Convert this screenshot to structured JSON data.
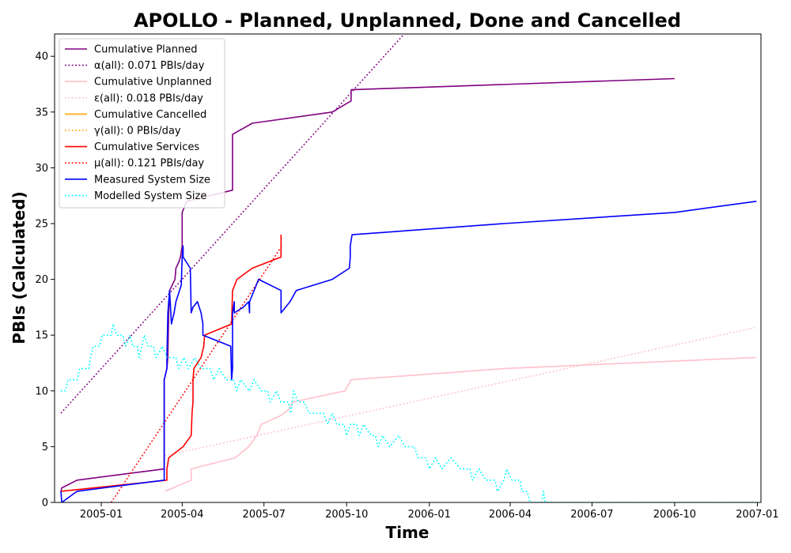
{
  "chart_data": {
    "type": "line",
    "title": "APOLLO - Planned, Unplanned, Done  and Cancelled",
    "xlabel": "Time",
    "ylabel": "PBIs (Calculated)",
    "xlim": [
      "2004-11-10",
      "2007-01-05"
    ],
    "ylim": [
      0,
      42
    ],
    "x_ticks": [
      {
        "date": "2005-01-01",
        "label": "2005-01"
      },
      {
        "date": "2005-04-01",
        "label": "2005-04"
      },
      {
        "date": "2005-07-01",
        "label": "2005-07"
      },
      {
        "date": "2005-10-01",
        "label": "2005-10"
      },
      {
        "date": "2006-01-01",
        "label": "2006-01"
      },
      {
        "date": "2006-04-01",
        "label": "2006-04"
      },
      {
        "date": "2006-07-01",
        "label": "2006-07"
      },
      {
        "date": "2006-10-01",
        "label": "2006-10"
      },
      {
        "date": "2007-01-01",
        "label": "2007-01"
      }
    ],
    "y_ticks": [
      0,
      5,
      10,
      15,
      20,
      25,
      30,
      35,
      40
    ],
    "grid": false,
    "legend_position": "top-left",
    "series": [
      {
        "name": "Cumulative Planned",
        "color": "#800080",
        "style": "solid",
        "points": [
          [
            "2004-11-17",
            1
          ],
          [
            "2004-11-18",
            1.3
          ],
          [
            "2004-12-05",
            2
          ],
          [
            "2005-03-12",
            3
          ],
          [
            "2005-03-12",
            11
          ],
          [
            "2005-03-15",
            12
          ],
          [
            "2005-03-16",
            13
          ],
          [
            "2005-03-17",
            17
          ],
          [
            "2005-03-18",
            19
          ],
          [
            "2005-03-24",
            20
          ],
          [
            "2005-03-25",
            21
          ],
          [
            "2005-03-28",
            21.5
          ],
          [
            "2005-03-30",
            22
          ],
          [
            "2005-03-31",
            22.5
          ],
          [
            "2005-04-01",
            23
          ],
          [
            "2005-04-01",
            26
          ],
          [
            "2005-04-06",
            27
          ],
          [
            "2005-05-27",
            28
          ],
          [
            "2005-05-27",
            33
          ],
          [
            "2005-06-18",
            34
          ],
          [
            "2005-09-15",
            35
          ],
          [
            "2005-10-06",
            36
          ],
          [
            "2005-10-06",
            37
          ],
          [
            "2006-10-01",
            38
          ]
        ]
      },
      {
        "name": "α(all): 0.071 PBIs/day",
        "color": "#800080",
        "style": "dotted",
        "points": [
          [
            "2004-11-17",
            8
          ],
          [
            "2005-12-04",
            42
          ]
        ]
      },
      {
        "name": "Cumulative Unplanned",
        "color": "#ffc0cb",
        "style": "solid",
        "points": [
          [
            "2005-03-13",
            1
          ],
          [
            "2005-04-11",
            2
          ],
          [
            "2005-04-11",
            3
          ],
          [
            "2005-05-30",
            4
          ],
          [
            "2005-06-14",
            5
          ],
          [
            "2005-06-23",
            6
          ],
          [
            "2005-06-28",
            7
          ],
          [
            "2005-07-20",
            7.8
          ],
          [
            "2005-07-28",
            8.3
          ],
          [
            "2005-08-02",
            9
          ],
          [
            "2005-09-29",
            10
          ],
          [
            "2005-10-06",
            11
          ],
          [
            "2006-03-25",
            12
          ],
          [
            "2006-12-31",
            13
          ]
        ]
      },
      {
        "name": "ε(all): 0.018 PBIs/day",
        "color": "#ffc0cb",
        "style": "dotted",
        "points": [
          [
            "2005-03-13",
            4.2
          ],
          [
            "2006-12-31",
            15.7
          ]
        ]
      },
      {
        "name": "Cumulative Cancelled",
        "color": "#ffa500",
        "style": "solid",
        "points": []
      },
      {
        "name": "γ(all): 0 PBIs/day",
        "color": "#ffa500",
        "style": "dotted",
        "points": []
      },
      {
        "name": "Cumulative Services",
        "color": "#ff0000",
        "style": "solid",
        "points": [
          [
            "2004-11-17",
            1
          ],
          [
            "2005-03-15",
            2
          ],
          [
            "2005-03-15",
            3
          ],
          [
            "2005-03-16",
            3.5
          ],
          [
            "2005-03-17",
            4
          ],
          [
            "2005-04-02",
            5
          ],
          [
            "2005-04-11",
            6
          ],
          [
            "2005-04-12",
            8
          ],
          [
            "2005-04-13",
            9
          ],
          [
            "2005-04-13",
            11
          ],
          [
            "2005-04-14",
            12
          ],
          [
            "2005-04-22",
            13
          ],
          [
            "2005-04-25",
            14
          ],
          [
            "2005-04-26",
            15
          ],
          [
            "2005-05-26",
            16
          ],
          [
            "2005-05-27",
            19
          ],
          [
            "2005-06-01",
            20
          ],
          [
            "2005-06-18",
            21
          ],
          [
            "2005-07-20",
            22
          ],
          [
            "2005-07-20",
            24
          ]
        ]
      },
      {
        "name": "μ(all): 0.121 PBIs/day",
        "color": "#ff0000",
        "style": "dotted",
        "points": [
          [
            "2005-01-12",
            0
          ],
          [
            "2005-07-21",
            23
          ]
        ]
      },
      {
        "name": "Measured System Size",
        "color": "#0000ff",
        "style": "solid",
        "points": [
          [
            "2004-11-17",
            1
          ],
          [
            "2004-11-18",
            0
          ],
          [
            "2004-12-05",
            1
          ],
          [
            "2005-03-12",
            2
          ],
          [
            "2005-03-12",
            11
          ],
          [
            "2005-03-15",
            12
          ],
          [
            "2005-03-15",
            13
          ],
          [
            "2005-03-16",
            17
          ],
          [
            "2005-03-17",
            18
          ],
          [
            "2005-03-18",
            19
          ],
          [
            "2005-03-20",
            16
          ],
          [
            "2005-03-23",
            17
          ],
          [
            "2005-03-25",
            18
          ],
          [
            "2005-03-31",
            19.5
          ],
          [
            "2005-04-01",
            22
          ],
          [
            "2005-04-02",
            23
          ],
          [
            "2005-04-02",
            22
          ],
          [
            "2005-04-10",
            21
          ],
          [
            "2005-04-11",
            17
          ],
          [
            "2005-04-13",
            17.5
          ],
          [
            "2005-04-18",
            18
          ],
          [
            "2005-04-22",
            17
          ],
          [
            "2005-04-24",
            16
          ],
          [
            "2005-04-24",
            15
          ],
          [
            "2005-05-25",
            14
          ],
          [
            "2005-05-26",
            11
          ],
          [
            "2005-05-27",
            12
          ],
          [
            "2005-05-27",
            17
          ],
          [
            "2005-05-29",
            18
          ],
          [
            "2005-05-29",
            17
          ],
          [
            "2005-06-08",
            17.5
          ],
          [
            "2005-06-14",
            18
          ],
          [
            "2005-06-15",
            17
          ],
          [
            "2005-06-15",
            18
          ],
          [
            "2005-06-25",
            20
          ],
          [
            "2005-07-20",
            19
          ],
          [
            "2005-07-20",
            17
          ],
          [
            "2005-07-30",
            18
          ],
          [
            "2005-08-06",
            19
          ],
          [
            "2005-09-15",
            20
          ],
          [
            "2005-10-04",
            21
          ],
          [
            "2005-10-05",
            22
          ],
          [
            "2005-10-05",
            23
          ],
          [
            "2005-10-07",
            24
          ],
          [
            "2006-03-25",
            25
          ],
          [
            "2006-10-01",
            26
          ],
          [
            "2006-12-31",
            27
          ]
        ]
      },
      {
        "name": "Modelled System Size",
        "color": "#00ffff",
        "style": "dotted",
        "points": [
          [
            "2004-11-17",
            10
          ],
          [
            "2004-11-22",
            10
          ],
          [
            "2004-11-25",
            11
          ],
          [
            "2004-12-05",
            11
          ],
          [
            "2004-12-08",
            12
          ],
          [
            "2004-12-18",
            12
          ],
          [
            "2004-12-20",
            13
          ],
          [
            "2004-12-23",
            14
          ],
          [
            "2004-12-30",
            14
          ],
          [
            "2005-01-02",
            15
          ],
          [
            "2005-01-12",
            15
          ],
          [
            "2005-01-14",
            16
          ],
          [
            "2005-01-18",
            15
          ],
          [
            "2005-01-25",
            15
          ],
          [
            "2005-01-28",
            14
          ],
          [
            "2005-02-02",
            15
          ],
          [
            "2005-02-05",
            14
          ],
          [
            "2005-02-10",
            14
          ],
          [
            "2005-02-12",
            13
          ],
          [
            "2005-02-15",
            14
          ],
          [
            "2005-02-18",
            15
          ],
          [
            "2005-02-22",
            14
          ],
          [
            "2005-02-28",
            14
          ],
          [
            "2005-03-03",
            13
          ],
          [
            "2005-03-10",
            14
          ],
          [
            "2005-03-15",
            13
          ],
          [
            "2005-03-25",
            13
          ],
          [
            "2005-03-28",
            12
          ],
          [
            "2005-04-03",
            13
          ],
          [
            "2005-04-08",
            12
          ],
          [
            "2005-04-15",
            13
          ],
          [
            "2005-04-22",
            12
          ],
          [
            "2005-05-02",
            12
          ],
          [
            "2005-05-06",
            11
          ],
          [
            "2005-05-12",
            12
          ],
          [
            "2005-05-20",
            11
          ],
          [
            "2005-05-28",
            11
          ],
          [
            "2005-06-01",
            10
          ],
          [
            "2005-06-05",
            11
          ],
          [
            "2005-06-15",
            10
          ],
          [
            "2005-06-20",
            11
          ],
          [
            "2005-06-28",
            10
          ],
          [
            "2005-07-05",
            10
          ],
          [
            "2005-07-08",
            9
          ],
          [
            "2005-07-15",
            10
          ],
          [
            "2005-07-20",
            9
          ],
          [
            "2005-07-28",
            9
          ],
          [
            "2005-07-31",
            8
          ],
          [
            "2005-08-03",
            10
          ],
          [
            "2005-08-08",
            9
          ],
          [
            "2005-08-15",
            9
          ],
          [
            "2005-08-20",
            8
          ],
          [
            "2005-09-05",
            8
          ],
          [
            "2005-09-10",
            7
          ],
          [
            "2005-09-15",
            8
          ],
          [
            "2005-09-20",
            7
          ],
          [
            "2005-09-28",
            7
          ],
          [
            "2005-10-01",
            6
          ],
          [
            "2005-10-05",
            7
          ],
          [
            "2005-10-12",
            7
          ],
          [
            "2005-10-15",
            6
          ],
          [
            "2005-10-20",
            7
          ],
          [
            "2005-10-28",
            6
          ],
          [
            "2005-11-02",
            6
          ],
          [
            "2005-11-05",
            5
          ],
          [
            "2005-11-10",
            6
          ],
          [
            "2005-11-18",
            5
          ],
          [
            "2005-11-28",
            6
          ],
          [
            "2005-12-05",
            5
          ],
          [
            "2005-12-15",
            5
          ],
          [
            "2005-12-20",
            4
          ],
          [
            "2005-12-28",
            4
          ],
          [
            "2006-01-01",
            3
          ],
          [
            "2006-01-08",
            4
          ],
          [
            "2006-01-15",
            3
          ],
          [
            "2006-01-25",
            4
          ],
          [
            "2006-02-05",
            3
          ],
          [
            "2006-02-15",
            3
          ],
          [
            "2006-02-18",
            2
          ],
          [
            "2006-02-25",
            3
          ],
          [
            "2006-03-05",
            2
          ],
          [
            "2006-03-15",
            2
          ],
          [
            "2006-03-18",
            1
          ],
          [
            "2006-03-25",
            2
          ],
          [
            "2006-03-28",
            3
          ],
          [
            "2006-04-03",
            2
          ],
          [
            "2006-04-12",
            2
          ],
          [
            "2006-04-14",
            1
          ],
          [
            "2006-04-20",
            1
          ],
          [
            "2006-04-23",
            0
          ],
          [
            "2006-05-06",
            0
          ],
          [
            "2006-05-08",
            1
          ],
          [
            "2006-05-10",
            0
          ],
          [
            "2006-12-31",
            0
          ]
        ]
      }
    ]
  }
}
